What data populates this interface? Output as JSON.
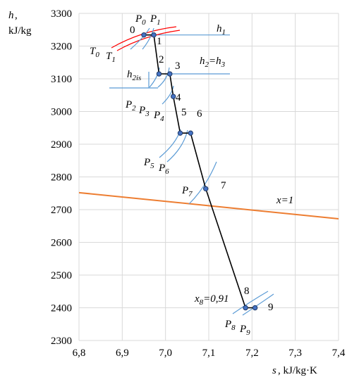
{
  "chart_data": {
    "type": "line",
    "xlim": [
      6.8,
      7.4
    ],
    "ylim": [
      2300,
      3300
    ],
    "xticks": [
      6.8,
      6.9,
      7.0,
      7.1,
      7.2,
      7.3,
      7.4
    ],
    "yticks": [
      2300,
      2400,
      2500,
      2600,
      2700,
      2800,
      2900,
      3000,
      3100,
      3200,
      3300
    ],
    "x_tick_labels": [
      "6,8",
      "6,9",
      "7,0",
      "7,1",
      "7,2",
      "7,3",
      "7,4"
    ],
    "y_tick_labels": [
      "2300",
      "2400",
      "2500",
      "2600",
      "2700",
      "2800",
      "2900",
      "3000",
      "3100",
      "3200",
      "3300"
    ],
    "grid": true,
    "x_axis_label": {
      "var": "s",
      "unit": ", kJ/kg·K"
    },
    "y_axis_label": {
      "var": "h",
      "unit": "kJ/kg"
    },
    "expansion_points": [
      {
        "id": "0",
        "x": 6.95,
        "y": 3234
      },
      {
        "id": "1",
        "x": 6.973,
        "y": 3234
      },
      {
        "id": "2",
        "x": 6.985,
        "y": 3115
      },
      {
        "id": "3",
        "x": 7.01,
        "y": 3115
      },
      {
        "id": "4",
        "x": 7.018,
        "y": 3046
      },
      {
        "id": "5",
        "x": 7.034,
        "y": 2934
      },
      {
        "id": "6",
        "x": 7.058,
        "y": 2934
      },
      {
        "id": "7",
        "x": 7.093,
        "y": 2764
      },
      {
        "id": "8",
        "x": 7.185,
        "y": 2400
      },
      {
        "id": "9",
        "x": 7.207,
        "y": 2400
      }
    ],
    "saturation_line": {
      "label": "x=1",
      "color": "#ed7d31",
      "x": [
        6.8,
        7.4
      ],
      "y": [
        2752,
        2672
      ]
    },
    "isotherm_color": "#ff0000",
    "isobar_color": "#5b9bd5",
    "enthalpy_ref_color": "#5b9bd5",
    "enthalpy_refs": [
      {
        "label": "h",
        "sub": "1",
        "y": 3234
      },
      {
        "label": "h",
        "sub": "2",
        "suffix": "=h",
        "sub2": "3",
        "y": 3115
      },
      {
        "label": "h",
        "sub": "2is",
        "y": 3075
      }
    ],
    "labels": [
      {
        "text": "P",
        "sub": "0"
      },
      {
        "text": "P",
        "sub": "1"
      },
      {
        "text": "T",
        "sub": "0"
      },
      {
        "text": "T",
        "sub": "1"
      },
      {
        "text": "P",
        "sub": "2"
      },
      {
        "text": "P",
        "sub": "3"
      },
      {
        "text": "P",
        "sub": "4"
      },
      {
        "text": "P",
        "sub": "5"
      },
      {
        "text": "P",
        "sub": "6"
      },
      {
        "text": "P",
        "sub": "7"
      },
      {
        "text": "P",
        "sub": "8"
      },
      {
        "text": "P",
        "sub": "9"
      },
      {
        "text": "x",
        "sub": "8",
        "suffix": "=0,91"
      }
    ]
  }
}
